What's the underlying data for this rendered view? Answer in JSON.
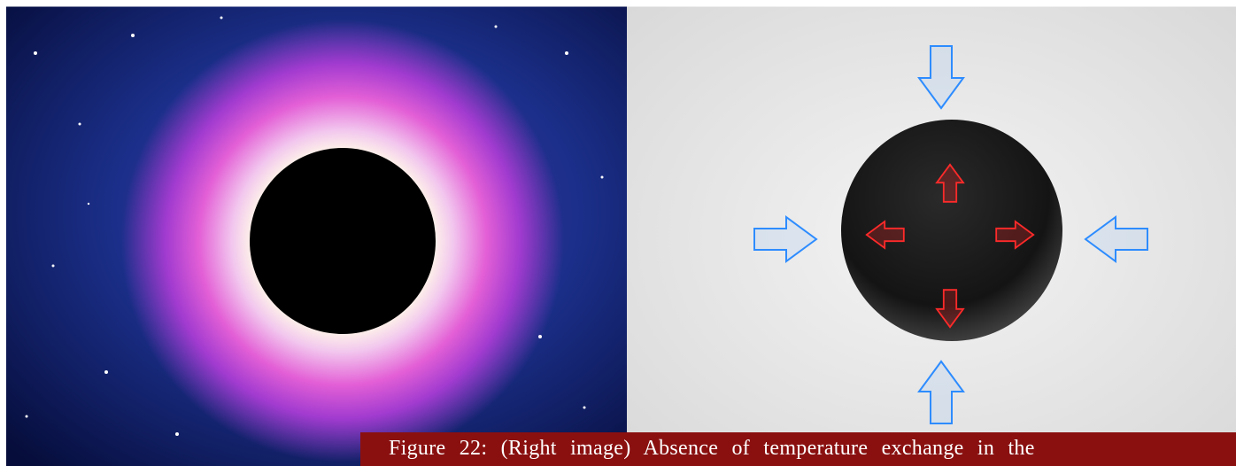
{
  "caption": {
    "text": "Figure 22: (Right image) Absence of temperature exchange in the"
  }
}
